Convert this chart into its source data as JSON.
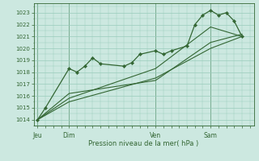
{
  "bg_color": "#cce8e0",
  "grid_color": "#99ccbb",
  "line_color": "#336633",
  "marker_color": "#336633",
  "axis_color": "#336633",
  "xlabel": "Pression niveau de la mer( hPa )",
  "ylim": [
    1013.5,
    1023.8
  ],
  "yticks": [
    1014,
    1015,
    1016,
    1017,
    1018,
    1019,
    1020,
    1021,
    1022,
    1023
  ],
  "day_labels": [
    "Jeu",
    "Dim",
    "Ven",
    "Sam"
  ],
  "day_positions": [
    0.0,
    16.0,
    60.0,
    88.0
  ],
  "series1_x": [
    0,
    4,
    16,
    20,
    24,
    28,
    32,
    44,
    48,
    52,
    60,
    64,
    68,
    76,
    80,
    84,
    88,
    92,
    96,
    100,
    104
  ],
  "series1_y": [
    1014.0,
    1015.0,
    1018.3,
    1018.0,
    1018.5,
    1019.2,
    1018.7,
    1018.5,
    1018.8,
    1019.5,
    1019.8,
    1019.5,
    1019.8,
    1020.2,
    1022.0,
    1022.8,
    1023.2,
    1022.8,
    1023.0,
    1022.3,
    1021.0
  ],
  "series2_x": [
    0,
    16,
    60,
    88,
    104
  ],
  "series2_y": [
    1014.0,
    1015.5,
    1017.5,
    1020.0,
    1021.0
  ],
  "series3_x": [
    0,
    16,
    60,
    88,
    104
  ],
  "series3_y": [
    1014.0,
    1015.8,
    1018.3,
    1021.8,
    1021.0
  ],
  "series4_x": [
    0,
    16,
    60,
    88,
    104
  ],
  "series4_y": [
    1014.0,
    1016.2,
    1017.3,
    1020.5,
    1021.2
  ],
  "xlim": [
    -2,
    110
  ],
  "vlines": [
    0.0,
    16.0,
    60.0,
    88.0
  ]
}
